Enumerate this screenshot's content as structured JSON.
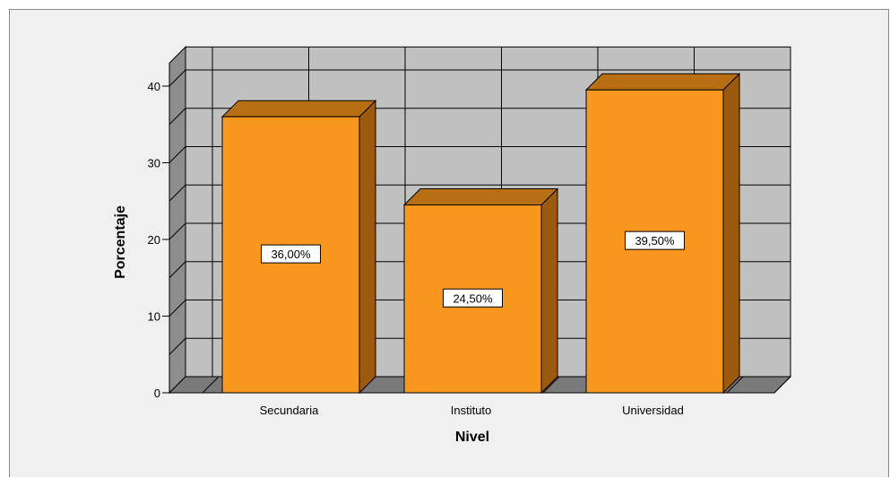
{
  "chart_data": {
    "type": "bar",
    "categories": [
      "Secundaria",
      "Instituto",
      "Universidad"
    ],
    "values": [
      36.0,
      24.5,
      39.5
    ],
    "data_labels": [
      "36,00%",
      "24,50%",
      "39,50%"
    ],
    "title": "",
    "xlabel": "Nivel",
    "ylabel": "Porcentaje",
    "ylim": [
      0,
      43
    ],
    "yticks": [
      "0",
      "10",
      "20",
      "30",
      "40"
    ],
    "grid": true,
    "legend": "none",
    "bar_color": "#f7971e",
    "bar_side_color": "#9b5a0e",
    "bar_top_color": "#b86f14"
  }
}
